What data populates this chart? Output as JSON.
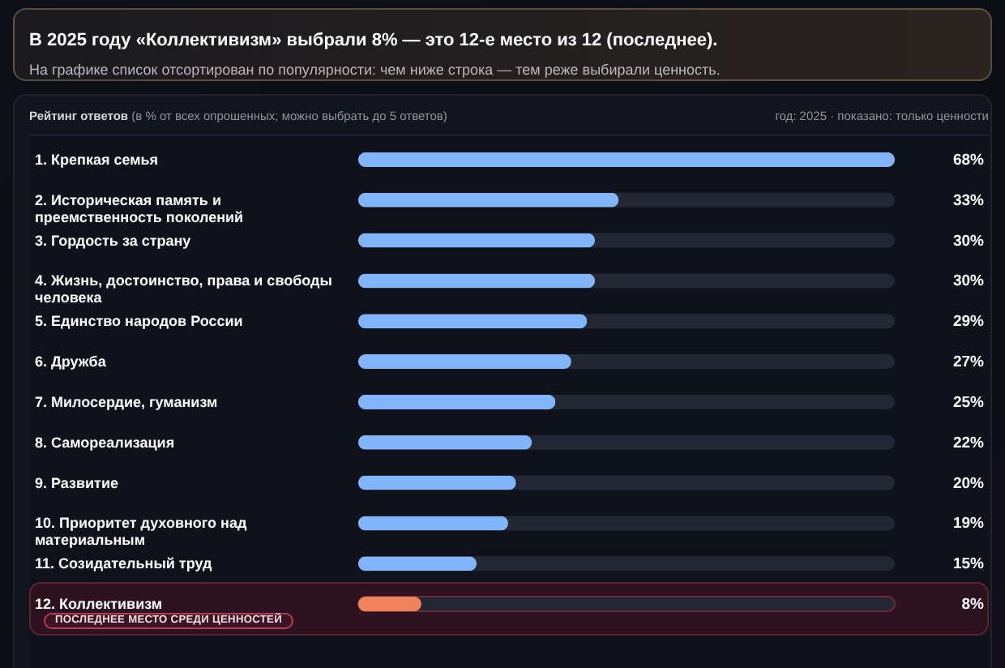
{
  "chart_data": {
    "type": "bar",
    "orientation": "horizontal",
    "title": "В 2025 году «Коллективизм» выбрали 8% — это 12-е место из 12 (последнее).",
    "subtitle": "На графике список отсортирован по популярности: чем ниже строка — тем реже выбирали ценность.",
    "categories": [
      "1. Крепкая семья",
      "2. Историческая память и преемственность поколений",
      "3. Гордость за страну",
      "4. Жизнь, достоинство, права и свободы человека",
      "5. Единство народов России",
      "6. Дружба",
      "7. Милосердие, гуманизм",
      "8. Самореализация",
      "9. Развитие",
      "10. Приоритет духовного над материальным",
      "11. Созидательный труд",
      "12. Коллективизм"
    ],
    "values": [
      68,
      33,
      30,
      30,
      29,
      27,
      25,
      22,
      20,
      19,
      15,
      8
    ],
    "value_labels": [
      "68%",
      "33%",
      "30%",
      "30%",
      "29%",
      "27%",
      "25%",
      "22%",
      "20%",
      "19%",
      "15%",
      "8%"
    ],
    "colors": [
      "#82b4f9",
      "#82b4f9",
      "#82b4f9",
      "#82b4f9",
      "#82b4f9",
      "#82b4f9",
      "#82b4f9",
      "#82b4f9",
      "#82b4f9",
      "#82b4f9",
      "#82b4f9",
      "#f0825c"
    ],
    "bands": [
      {
        "axis": "y",
        "from": "12. Коллективизм",
        "to": "12. Коллективизм",
        "label": "ПОСЛЕДНЕЕ МЕСТО СРЕДИ ЦЕННОСТЕЙ",
        "color": "#2e1220"
      }
    ],
    "annotations": [
      "Рейтинг ответов (в % от всех опрошенных; можно выбрать до 5 ответов)",
      "год: 2025 · показано: только ценности"
    ]
  }
}
